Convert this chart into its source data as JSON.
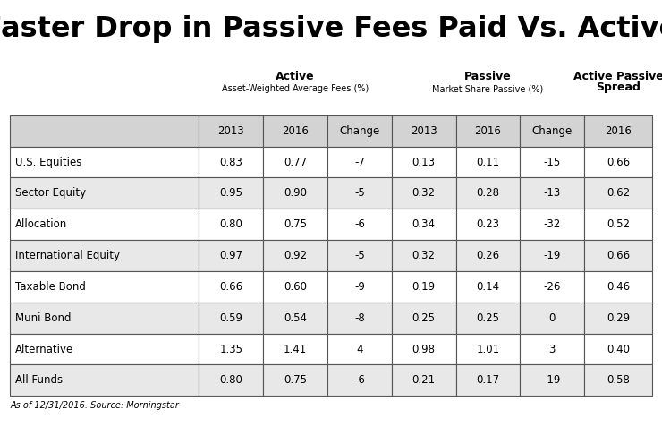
{
  "title": "Faster Drop in Passive Fees Paid Vs. Active",
  "subtitle_note": "As of 12/31/2016. Source: Morningstar",
  "active_header1": "Active",
  "active_header2": "Asset-Weighted Average Fees (%)",
  "passive_header1": "Passive",
  "passive_header2": "Market Share Passive (%)",
  "spread_header1": "Active Passive",
  "spread_header2": "Spread",
  "col_headers": [
    "2013",
    "2016",
    "Change",
    "2013",
    "2016",
    "Change",
    "2016"
  ],
  "row_labels": [
    "U.S. Equities",
    "Sector Equity",
    "Allocation",
    "International Equity",
    "Taxable Bond",
    "Muni Bond",
    "Alternative",
    "All Funds"
  ],
  "table_data": [
    [
      "0.83",
      "0.77",
      "-7",
      "0.13",
      "0.11",
      "-15",
      "0.66"
    ],
    [
      "0.95",
      "0.90",
      "-5",
      "0.32",
      "0.28",
      "-13",
      "0.62"
    ],
    [
      "0.80",
      "0.75",
      "-6",
      "0.34",
      "0.23",
      "-32",
      "0.52"
    ],
    [
      "0.97",
      "0.92",
      "-5",
      "0.32",
      "0.26",
      "-19",
      "0.66"
    ],
    [
      "0.66",
      "0.60",
      "-9",
      "0.19",
      "0.14",
      "-26",
      "0.46"
    ],
    [
      "0.59",
      "0.54",
      "-8",
      "0.25",
      "0.25",
      "0",
      "0.29"
    ],
    [
      "1.35",
      "1.41",
      "4",
      "0.98",
      "1.01",
      "3",
      "0.40"
    ],
    [
      "0.80",
      "0.75",
      "-6",
      "0.21",
      "0.17",
      "-19",
      "0.58"
    ]
  ],
  "bg_color": "#ffffff",
  "header_row_bg": "#d3d3d3",
  "odd_row_bg": "#ffffff",
  "even_row_bg": "#e8e8e8",
  "border_color": "#555555",
  "title_color": "#000000",
  "text_color": "#000000",
  "title_fontsize": 23,
  "group_header_bold_fontsize": 9,
  "group_header_sub_fontsize": 7,
  "col_header_fontsize": 8.5,
  "data_fontsize": 8.5,
  "footnote_fontsize": 7
}
